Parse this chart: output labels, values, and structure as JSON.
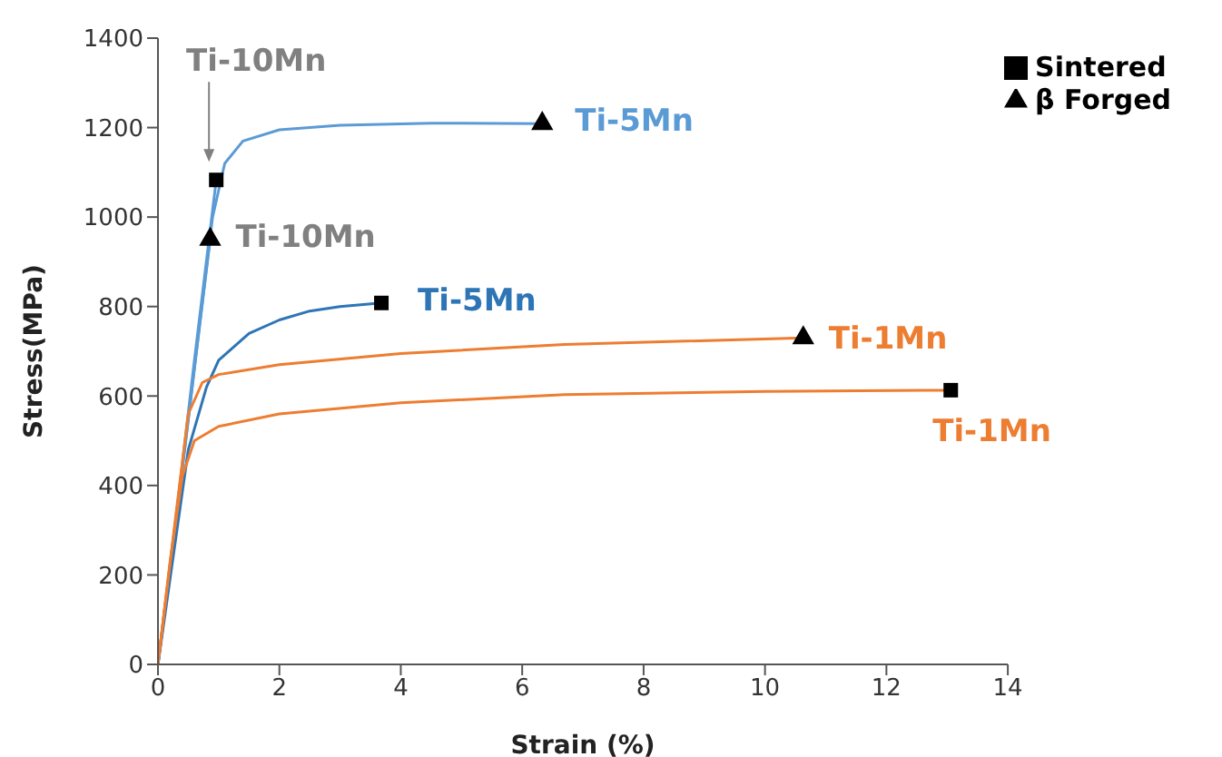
{
  "chart_data": {
    "type": "line",
    "xlabel": "Strain (%)",
    "ylabel": "Stress(MPa)",
    "xlim": [
      0,
      14
    ],
    "xticks": [
      0,
      2,
      4,
      6,
      8,
      10,
      12,
      14
    ],
    "ylim": [
      0,
      1400
    ],
    "yticks": [
      0,
      200,
      400,
      600,
      800,
      1000,
      1200,
      1400
    ],
    "annotations": [
      "Ti-10Mn"
    ],
    "grid": false,
    "legend": "top right",
    "marker": "none",
    "line_style": "solid",
    "series": [
      {
        "color": "#5b9bd5",
        "x": [
          0,
          0.3,
          0.6,
          0.96
        ],
        "values": [
          0,
          330,
          680,
          1083
        ]
      },
      {
        "name": "Ti-10Mn",
        "color": "#5b9bd5",
        "x": [
          0,
          0.3,
          0.6,
          0.86
        ],
        "values": [
          0,
          320,
          660,
          950
        ]
      },
      {
        "name": "Ti-5Mn",
        "color": "#5b9bd5",
        "x": [
          0,
          0.5,
          0.9,
          1.1,
          1.4,
          2,
          3,
          4.5,
          6.33
        ],
        "values": [
          0,
          550,
          1000,
          1120,
          1170,
          1195,
          1205,
          1210,
          1209
        ]
      },
      {
        "name": "Ti-5Mn",
        "color": "#2e75b6",
        "x": [
          0,
          0.5,
          0.8,
          1,
          1.5,
          2,
          2.5,
          3,
          3.68
        ],
        "values": [
          0,
          480,
          620,
          680,
          740,
          770,
          790,
          800,
          808
        ]
      },
      {
        "name": "Ti-1Mn",
        "color": "#ed7d31",
        "x": [
          0,
          0.3,
          0.5,
          0.73,
          1,
          2,
          4,
          6.7,
          10.63
        ],
        "values": [
          0,
          340,
          560,
          630,
          648,
          670,
          695,
          715,
          730
        ]
      },
      {
        "name": "Ti-1Mn",
        "color": "#ed7d31",
        "x": [
          0,
          0.2,
          0.4,
          0.6,
          1,
          2,
          4,
          6.7,
          10,
          13.06
        ],
        "values": [
          0,
          230,
          420,
          500,
          532,
          560,
          585,
          603,
          610,
          613
        ]
      },
      {
        "name": "Sintered",
        "type": "scatter",
        "marker": "square",
        "color": "#000000",
        "x": [
          0.96,
          3.68,
          13.06
        ],
        "values": [
          1083,
          808,
          613
        ]
      },
      {
        "name": "β Forged",
        "type": "scatter",
        "marker": "triangle",
        "color": "#000000",
        "x": [
          0.86,
          6.33,
          10.63
        ],
        "values": [
          950,
          1209,
          730
        ]
      }
    ]
  }
}
